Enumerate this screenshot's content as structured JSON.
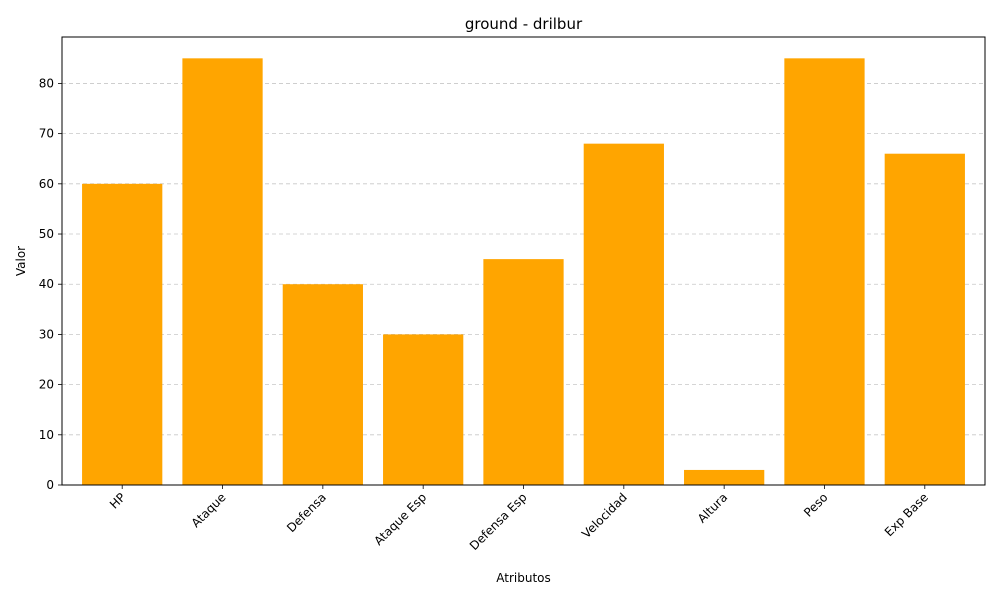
{
  "chart_data": {
    "type": "bar",
    "title": "ground - drilbur",
    "xlabel": "Atributos",
    "ylabel": "Valor",
    "categories": [
      "HP",
      "Ataque",
      "Defensa",
      "Ataque Esp",
      "Defensa Esp",
      "Velocidad",
      "Altura",
      "Peso",
      "Exp Base"
    ],
    "values": [
      60,
      85,
      40,
      30,
      45,
      68,
      3,
      85,
      66
    ],
    "ylim": [
      0,
      89.25
    ],
    "yticks": [
      0,
      10,
      20,
      30,
      40,
      50,
      60,
      70,
      80
    ],
    "bar_color": "#ffa500",
    "grid": "horizontal, dashed",
    "x_tick_rotation": 45,
    "legend": "none"
  }
}
